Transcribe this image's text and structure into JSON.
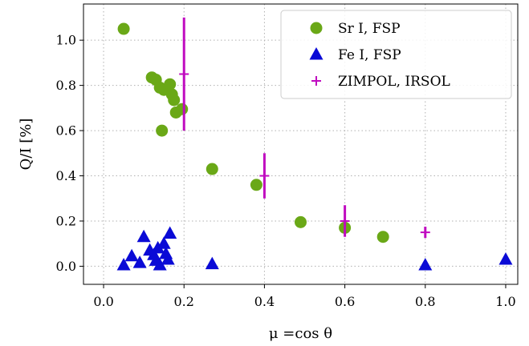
{
  "chart_data": {
    "type": "scatter",
    "xlabel": "μ =cos θ",
    "ylabel": "Q/I [%]",
    "xlim": [
      -0.05,
      1.03
    ],
    "ylim": [
      -0.08,
      1.16
    ],
    "xticks": [
      0.0,
      0.2,
      0.4,
      0.6,
      0.8,
      1.0
    ],
    "yticks": [
      0.0,
      0.2,
      0.4,
      0.6,
      0.8,
      1.0
    ],
    "grid": true,
    "legend_position": "top-right",
    "series": [
      {
        "name": "Sr I, FSP",
        "marker": "circle",
        "color": "#6aa817",
        "points": [
          [
            0.05,
            1.05
          ],
          [
            0.12,
            0.835
          ],
          [
            0.13,
            0.825
          ],
          [
            0.14,
            0.79
          ],
          [
            0.15,
            0.78
          ],
          [
            0.165,
            0.805
          ],
          [
            0.17,
            0.76
          ],
          [
            0.175,
            0.735
          ],
          [
            0.18,
            0.68
          ],
          [
            0.195,
            0.695
          ],
          [
            0.145,
            0.6
          ],
          [
            0.27,
            0.43
          ],
          [
            0.38,
            0.36
          ],
          [
            0.49,
            0.195
          ],
          [
            0.6,
            0.17
          ],
          [
            0.695,
            0.13
          ]
        ]
      },
      {
        "name": "Fe I, FSP",
        "marker": "triangle",
        "color": "#0a0ad6",
        "points": [
          [
            0.05,
            0.005
          ],
          [
            0.07,
            0.045
          ],
          [
            0.09,
            0.015
          ],
          [
            0.1,
            0.13
          ],
          [
            0.115,
            0.07
          ],
          [
            0.125,
            0.05
          ],
          [
            0.13,
            0.025
          ],
          [
            0.135,
            0.08
          ],
          [
            0.14,
            0.005
          ],
          [
            0.15,
            0.1
          ],
          [
            0.155,
            0.055
          ],
          [
            0.16,
            0.03
          ],
          [
            0.165,
            0.145
          ],
          [
            0.27,
            0.01
          ],
          [
            0.8,
            0.005
          ],
          [
            1.0,
            0.03
          ]
        ]
      },
      {
        "name": "ZIMPOL, IRSOL",
        "marker": "plus",
        "color": "#c00bc0",
        "points": [
          [
            0.2,
            0.85,
            0.25
          ],
          [
            0.4,
            0.4,
            0.1
          ],
          [
            0.6,
            0.2,
            0.07
          ],
          [
            0.8,
            0.15,
            0.025
          ]
        ]
      }
    ]
  }
}
